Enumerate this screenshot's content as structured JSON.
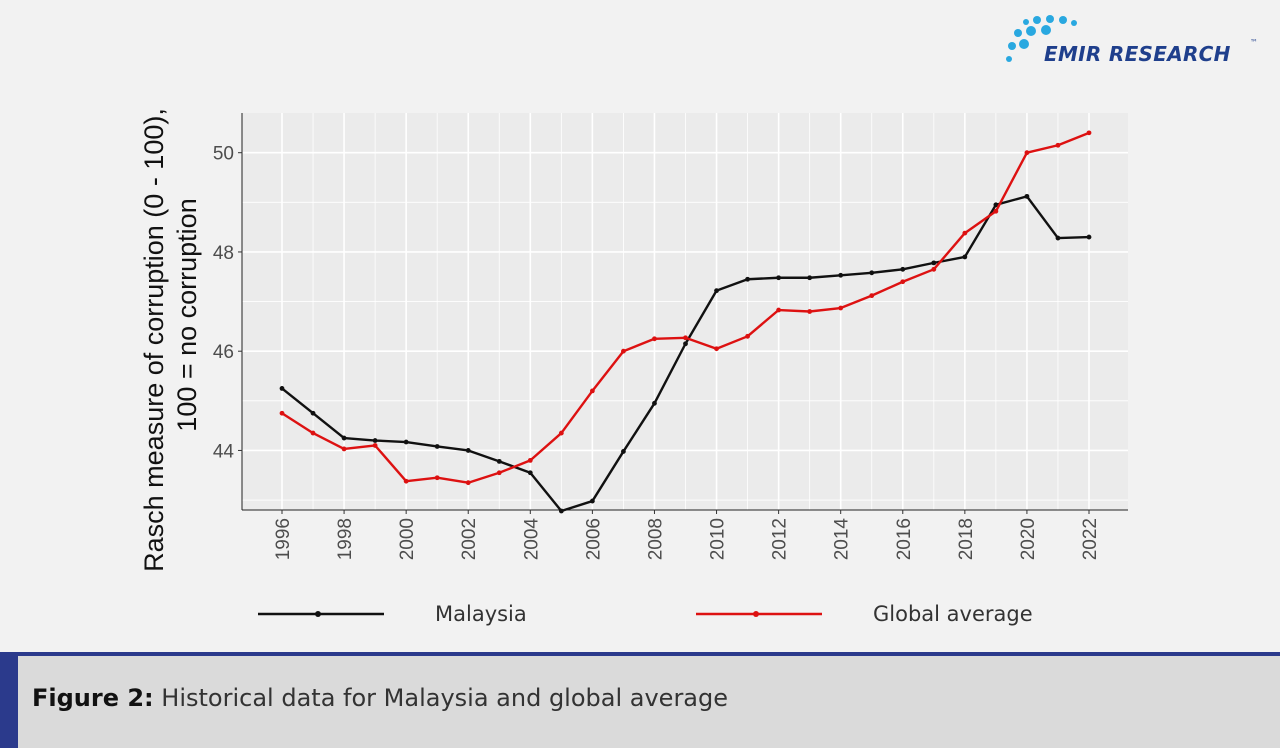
{
  "brand": {
    "name": "EMIR RESEARCH",
    "trademark": "™",
    "colors": {
      "primary": "#1f3f8c",
      "dots": "#29a8e0"
    }
  },
  "caption": {
    "label": "Figure 2:",
    "text": "Historical data for Malaysia and global average"
  },
  "chart_data": {
    "type": "line",
    "title": "",
    "xlabel": "",
    "ylabel_line1": "Rasch measure of corruption (0 - 100),",
    "ylabel_line2": "100 = no corruption",
    "x": [
      1996,
      1997,
      1998,
      1999,
      2000,
      2001,
      2002,
      2003,
      2004,
      2005,
      2006,
      2007,
      2008,
      2009,
      2010,
      2011,
      2012,
      2013,
      2014,
      2015,
      2016,
      2017,
      2018,
      2019,
      2020,
      2021,
      2022
    ],
    "xticks": [
      "1996",
      "1998",
      "2000",
      "2002",
      "2004",
      "2006",
      "2008",
      "2010",
      "2012",
      "2014",
      "2016",
      "2018",
      "2020",
      "2022"
    ],
    "yticks": [
      "44",
      "46",
      "48",
      "50"
    ],
    "xlim": [
      1996,
      2022
    ],
    "ylim": [
      42.8,
      50.8
    ],
    "grid": true,
    "legend_position": "bottom",
    "series": [
      {
        "name": "Malaysia",
        "color": "#111111",
        "values": [
          45.25,
          44.75,
          44.25,
          44.2,
          44.17,
          44.08,
          44.0,
          43.78,
          43.55,
          42.78,
          42.98,
          43.98,
          44.95,
          46.15,
          47.22,
          47.45,
          47.48,
          47.48,
          47.53,
          47.58,
          47.65,
          47.78,
          47.9,
          48.95,
          49.12,
          48.28,
          48.3
        ]
      },
      {
        "name": "Global average",
        "color": "#dd1111",
        "values": [
          44.75,
          44.35,
          44.03,
          44.1,
          43.38,
          43.45,
          43.35,
          43.55,
          43.8,
          44.35,
          45.2,
          46.0,
          46.25,
          46.27,
          46.05,
          46.3,
          46.83,
          46.8,
          46.87,
          47.12,
          47.4,
          47.65,
          48.38,
          48.82,
          50.0,
          50.15,
          50.4
        ]
      }
    ]
  }
}
